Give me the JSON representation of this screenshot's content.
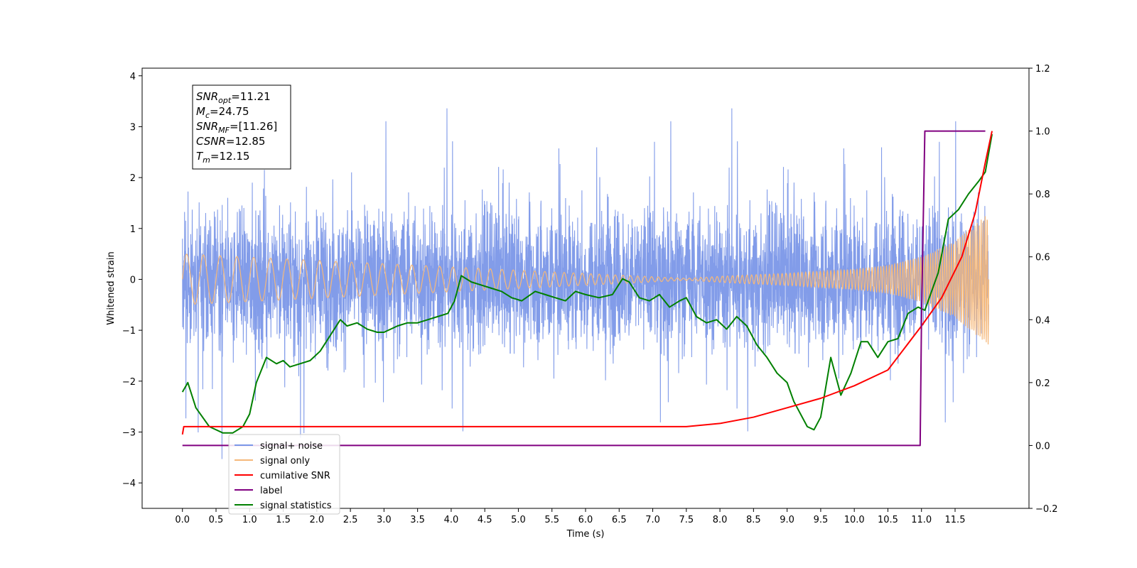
{
  "chart_data": {
    "type": "line",
    "xlabel": "Time (s)",
    "ylabel": "Whitened strain",
    "xlim": [
      -0.6,
      12.6
    ],
    "ylim": [
      -4.5,
      4.15
    ],
    "y2lim": [
      -0.2,
      1.2
    ],
    "x_ticks": [
      "0.0",
      "0.5",
      "1.0",
      "1.5",
      "2.0",
      "2.5",
      "3.0",
      "3.5",
      "4.0",
      "4.5",
      "5.0",
      "5.5",
      "6.0",
      "6.5",
      "7.0",
      "7.5",
      "8.0",
      "8.5",
      "9.0",
      "9.5",
      "10.0",
      "10.5",
      "11.0",
      "11.5"
    ],
    "y_ticks": [
      "4",
      "3",
      "2",
      "1",
      "0",
      "−1",
      "−2",
      "−3",
      "−4"
    ],
    "y2_ticks": [
      "1.2",
      "1.0",
      "0.8",
      "0.6",
      "0.4",
      "0.2",
      "0.0",
      "−0.2"
    ],
    "grid": false,
    "legend_placement": "lower-left",
    "stats_box": [
      {
        "name": "SNR",
        "sub": "opt",
        "value": "=11.21"
      },
      {
        "name": "M",
        "sub": "c",
        "value": "=24.75"
      },
      {
        "name": "SNR",
        "sub": "MF",
        "value": "=[11.26]"
      },
      {
        "name": "CSNR",
        "sub": "",
        "value": "=12.85"
      },
      {
        "name": "T",
        "sub": "m",
        "value": "=12.15"
      }
    ],
    "series": [
      {
        "name": "signal+ noise",
        "color": "#7b97e8",
        "axis": "left",
        "description": "whitened noisy strain, approximately zero-mean noise with std ~1, spanning x 0 to 12",
        "x_range": [
          0.0,
          12.0
        ],
        "typical_band": [
          -2.3,
          2.3
        ],
        "extremes": [
          -3.6,
          3.75
        ]
      },
      {
        "name": "signal only",
        "color": "#f5b87a",
        "axis": "left",
        "x": [
          0.0,
          7.5,
          8.0,
          9.0,
          10.0,
          10.5,
          11.0,
          11.5,
          12.0
        ],
        "amplitude": [
          0.5,
          0.02,
          0.06,
          0.12,
          0.2,
          0.28,
          0.45,
          0.75,
          1.3
        ]
      },
      {
        "name": "cumilative SNR",
        "color": "#ff0000",
        "axis": "right",
        "x": [
          0.0,
          0.02,
          7.5,
          8.0,
          8.5,
          9.0,
          9.5,
          10.0,
          10.5,
          11.0,
          11.3,
          11.6,
          11.8,
          11.95,
          12.05
        ],
        "y": [
          0.035,
          0.06,
          0.06,
          0.07,
          0.09,
          0.12,
          0.15,
          0.19,
          0.24,
          0.38,
          0.47,
          0.6,
          0.74,
          0.9,
          1.0
        ]
      },
      {
        "name": "label",
        "color": "#800080",
        "axis": "right",
        "x": [
          0.0,
          10.98,
          11.0,
          11.05,
          11.95
        ],
        "y": [
          0.0,
          0.0,
          0.4,
          1.0,
          1.0
        ]
      },
      {
        "name": "signal statistics",
        "color": "#008000",
        "axis": "right",
        "x": [
          0.0,
          0.08,
          0.2,
          0.4,
          0.6,
          0.75,
          0.9,
          1.0,
          1.1,
          1.25,
          1.4,
          1.5,
          1.6,
          1.75,
          1.9,
          2.05,
          2.2,
          2.35,
          2.45,
          2.6,
          2.75,
          2.9,
          3.0,
          3.2,
          3.35,
          3.5,
          3.65,
          3.8,
          3.95,
          4.05,
          4.15,
          4.3,
          4.45,
          4.6,
          4.75,
          4.9,
          5.05,
          5.25,
          5.4,
          5.55,
          5.7,
          5.85,
          6.0,
          6.2,
          6.4,
          6.55,
          6.65,
          6.8,
          6.95,
          7.1,
          7.25,
          7.4,
          7.5,
          7.65,
          7.8,
          7.95,
          8.1,
          8.25,
          8.4,
          8.55,
          8.7,
          8.85,
          9.0,
          9.1,
          9.3,
          9.4,
          9.5,
          9.65,
          9.8,
          9.95,
          10.1,
          10.2,
          10.35,
          10.5,
          10.65,
          10.8,
          10.95,
          11.05,
          11.25,
          11.4,
          11.55,
          11.7,
          11.85,
          11.95,
          12.05
        ],
        "y": [
          0.17,
          0.2,
          0.12,
          0.06,
          0.04,
          0.04,
          0.06,
          0.1,
          0.2,
          0.28,
          0.26,
          0.27,
          0.25,
          0.26,
          0.27,
          0.3,
          0.35,
          0.4,
          0.38,
          0.39,
          0.37,
          0.36,
          0.36,
          0.38,
          0.39,
          0.39,
          0.4,
          0.41,
          0.42,
          0.46,
          0.54,
          0.52,
          0.51,
          0.5,
          0.49,
          0.47,
          0.46,
          0.49,
          0.48,
          0.47,
          0.46,
          0.49,
          0.48,
          0.47,
          0.48,
          0.53,
          0.52,
          0.47,
          0.46,
          0.48,
          0.44,
          0.46,
          0.47,
          0.41,
          0.39,
          0.4,
          0.37,
          0.41,
          0.38,
          0.32,
          0.28,
          0.23,
          0.2,
          0.14,
          0.06,
          0.05,
          0.09,
          0.28,
          0.16,
          0.23,
          0.33,
          0.33,
          0.28,
          0.33,
          0.34,
          0.42,
          0.44,
          0.43,
          0.55,
          0.72,
          0.75,
          0.8,
          0.84,
          0.87,
          0.99
        ]
      }
    ]
  }
}
